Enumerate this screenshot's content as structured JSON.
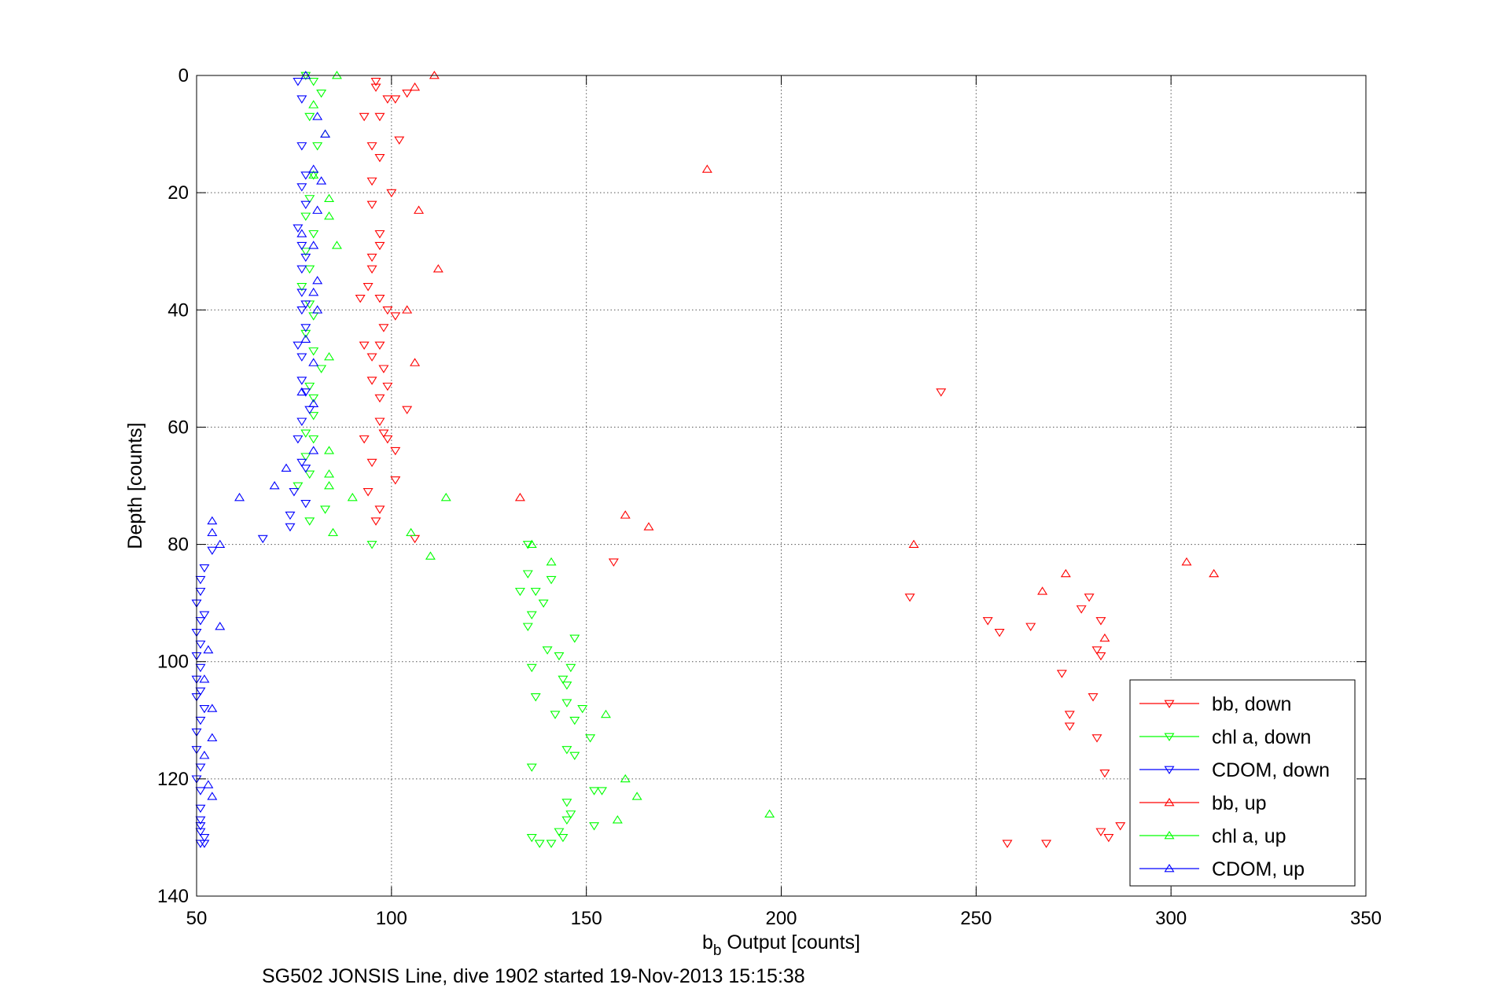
{
  "chart_data": {
    "type": "scatter",
    "title": "",
    "caption": "SG502 JONSIS Line, dive 1902 started 19-Nov-2013 15:15:38",
    "xlabel_main": "b",
    "xlabel_sub": "b",
    "xlabel_rest": " Output [counts]",
    "ylabel": "Depth [counts]",
    "xlim": [
      50,
      350
    ],
    "ylim": [
      0,
      140
    ],
    "y_reversed": true,
    "grid": true,
    "x_ticks": [
      "50",
      "100",
      "150",
      "200",
      "250",
      "300",
      "350"
    ],
    "y_ticks": [
      "0",
      "20",
      "40",
      "60",
      "80",
      "100",
      "120",
      "140"
    ],
    "legend_position": "bottom-right",
    "series": [
      {
        "name": "bb, down",
        "color": "#ff0000",
        "marker": "triangle-down",
        "points": [
          [
            96,
            1
          ],
          [
            96,
            2
          ],
          [
            99,
            4
          ],
          [
            93,
            7
          ],
          [
            97,
            7
          ],
          [
            95,
            12
          ],
          [
            101,
            4
          ],
          [
            104,
            3
          ],
          [
            102,
            11
          ],
          [
            100,
            20
          ],
          [
            97,
            14
          ],
          [
            95,
            18
          ],
          [
            95,
            22
          ],
          [
            97,
            27
          ],
          [
            97,
            29
          ],
          [
            95,
            31
          ],
          [
            95,
            33
          ],
          [
            94,
            36
          ],
          [
            92,
            38
          ],
          [
            97,
            38
          ],
          [
            99,
            40
          ],
          [
            101,
            41
          ],
          [
            98,
            43
          ],
          [
            93,
            46
          ],
          [
            97,
            46
          ],
          [
            95,
            48
          ],
          [
            98,
            50
          ],
          [
            95,
            52
          ],
          [
            99,
            53
          ],
          [
            97,
            55
          ],
          [
            104,
            57
          ],
          [
            97,
            59
          ],
          [
            98,
            61
          ],
          [
            99,
            62
          ],
          [
            93,
            62
          ],
          [
            101,
            64
          ],
          [
            95,
            66
          ],
          [
            101,
            69
          ],
          [
            94,
            71
          ],
          [
            97,
            74
          ],
          [
            96,
            76
          ],
          [
            106,
            79
          ],
          [
            157,
            83
          ],
          [
            233,
            89
          ],
          [
            241,
            54
          ],
          [
            264,
            94
          ],
          [
            256,
            95
          ],
          [
            253,
            93
          ],
          [
            277,
            91
          ],
          [
            279,
            89
          ],
          [
            282,
            93
          ],
          [
            281,
            98
          ],
          [
            282,
            99
          ],
          [
            280,
            106
          ],
          [
            272,
            102
          ],
          [
            274,
            109
          ],
          [
            274,
            111
          ],
          [
            281,
            113
          ],
          [
            283,
            119
          ],
          [
            287,
            128
          ],
          [
            284,
            130
          ],
          [
            258,
            131
          ],
          [
            268,
            131
          ],
          [
            282,
            129
          ]
        ]
      },
      {
        "name": "chl a, down",
        "color": "#00ff00",
        "marker": "triangle-down",
        "points": [
          [
            78,
            0
          ],
          [
            80,
            1
          ],
          [
            82,
            3
          ],
          [
            79,
            7
          ],
          [
            81,
            12
          ],
          [
            80,
            17
          ],
          [
            79,
            21
          ],
          [
            78,
            24
          ],
          [
            80,
            27
          ],
          [
            78,
            30
          ],
          [
            79,
            33
          ],
          [
            77,
            36
          ],
          [
            79,
            39
          ],
          [
            80,
            41
          ],
          [
            78,
            44
          ],
          [
            80,
            47
          ],
          [
            82,
            50
          ],
          [
            79,
            53
          ],
          [
            80,
            55
          ],
          [
            80,
            58
          ],
          [
            78,
            61
          ],
          [
            80,
            62
          ],
          [
            78,
            65
          ],
          [
            79,
            68
          ],
          [
            76,
            70
          ],
          [
            83,
            74
          ],
          [
            79,
            76
          ],
          [
            95,
            80
          ],
          [
            135,
            80
          ],
          [
            135,
            85
          ],
          [
            141,
            86
          ],
          [
            137,
            88
          ],
          [
            133,
            88
          ],
          [
            139,
            90
          ],
          [
            136,
            92
          ],
          [
            135,
            94
          ],
          [
            147,
            96
          ],
          [
            140,
            98
          ],
          [
            143,
            99
          ],
          [
            146,
            101
          ],
          [
            144,
            103
          ],
          [
            145,
            104
          ],
          [
            136,
            101
          ],
          [
            137,
            106
          ],
          [
            145,
            107
          ],
          [
            149,
            108
          ],
          [
            147,
            110
          ],
          [
            142,
            109
          ],
          [
            151,
            113
          ],
          [
            145,
            115
          ],
          [
            147,
            116
          ],
          [
            136,
            118
          ],
          [
            152,
            122
          ],
          [
            154,
            122
          ],
          [
            145,
            124
          ],
          [
            146,
            126
          ],
          [
            145,
            127
          ],
          [
            152,
            128
          ],
          [
            143,
            129
          ],
          [
            144,
            130
          ],
          [
            136,
            130
          ],
          [
            138,
            131
          ],
          [
            141,
            131
          ]
        ]
      },
      {
        "name": "CDOM, down",
        "color": "#0000ff",
        "marker": "triangle-down",
        "points": [
          [
            76,
            1
          ],
          [
            77,
            4
          ],
          [
            77,
            12
          ],
          [
            78,
            17
          ],
          [
            77,
            19
          ],
          [
            78,
            22
          ],
          [
            76,
            26
          ],
          [
            77,
            29
          ],
          [
            78,
            31
          ],
          [
            77,
            33
          ],
          [
            77,
            37
          ],
          [
            78,
            39
          ],
          [
            77,
            40
          ],
          [
            78,
            43
          ],
          [
            76,
            46
          ],
          [
            77,
            48
          ],
          [
            77,
            52
          ],
          [
            78,
            54
          ],
          [
            79,
            57
          ],
          [
            77,
            59
          ],
          [
            76,
            62
          ],
          [
            77,
            66
          ],
          [
            78,
            67
          ],
          [
            75,
            71
          ],
          [
            78,
            73
          ],
          [
            74,
            75
          ],
          [
            74,
            77
          ],
          [
            67,
            79
          ],
          [
            54,
            81
          ],
          [
            52,
            84
          ],
          [
            51,
            86
          ],
          [
            51,
            88
          ],
          [
            50,
            90
          ],
          [
            52,
            92
          ],
          [
            51,
            93
          ],
          [
            50,
            95
          ],
          [
            51,
            97
          ],
          [
            50,
            99
          ],
          [
            51,
            101
          ],
          [
            50,
            103
          ],
          [
            51,
            105
          ],
          [
            50,
            106
          ],
          [
            52,
            108
          ],
          [
            51,
            110
          ],
          [
            50,
            112
          ],
          [
            50,
            115
          ],
          [
            51,
            118
          ],
          [
            50,
            120
          ],
          [
            51,
            122
          ],
          [
            51,
            125
          ],
          [
            51,
            127
          ],
          [
            51,
            128
          ],
          [
            51,
            129
          ],
          [
            52,
            130
          ],
          [
            52,
            131
          ],
          [
            51,
            131
          ]
        ]
      },
      {
        "name": "bb, up",
        "color": "#ff0000",
        "marker": "triangle-up",
        "points": [
          [
            111,
            0
          ],
          [
            106,
            2
          ],
          [
            181,
            16
          ],
          [
            107,
            23
          ],
          [
            112,
            33
          ],
          [
            104,
            40
          ],
          [
            106,
            49
          ],
          [
            133,
            72
          ],
          [
            160,
            75
          ],
          [
            166,
            77
          ],
          [
            234,
            80
          ],
          [
            304,
            83
          ],
          [
            311,
            85
          ],
          [
            273,
            85
          ],
          [
            267,
            88
          ],
          [
            283,
            96
          ]
        ]
      },
      {
        "name": "chl a, up",
        "color": "#00ff00",
        "marker": "triangle-up",
        "points": [
          [
            86,
            0
          ],
          [
            80,
            5
          ],
          [
            83,
            10
          ],
          [
            80,
            17
          ],
          [
            84,
            21
          ],
          [
            84,
            24
          ],
          [
            86,
            29
          ],
          [
            84,
            48
          ],
          [
            84,
            64
          ],
          [
            84,
            68
          ],
          [
            84,
            70
          ],
          [
            90,
            72
          ],
          [
            114,
            72
          ],
          [
            85,
            78
          ],
          [
            105,
            78
          ],
          [
            110,
            82
          ],
          [
            141,
            83
          ],
          [
            136,
            80
          ],
          [
            155,
            109
          ],
          [
            160,
            120
          ],
          [
            163,
            123
          ],
          [
            197,
            126
          ],
          [
            158,
            127
          ]
        ]
      },
      {
        "name": "CDOM, up",
        "color": "#0000ff",
        "marker": "triangle-up",
        "points": [
          [
            78,
            0
          ],
          [
            81,
            7
          ],
          [
            83,
            10
          ],
          [
            80,
            16
          ],
          [
            82,
            18
          ],
          [
            81,
            23
          ],
          [
            77,
            27
          ],
          [
            80,
            29
          ],
          [
            81,
            35
          ],
          [
            80,
            37
          ],
          [
            81,
            40
          ],
          [
            78,
            45
          ],
          [
            80,
            49
          ],
          [
            77,
            54
          ],
          [
            80,
            56
          ],
          [
            80,
            64
          ],
          [
            73,
            67
          ],
          [
            70,
            70
          ],
          [
            61,
            72
          ],
          [
            54,
            76
          ],
          [
            54,
            78
          ],
          [
            56,
            80
          ],
          [
            56,
            94
          ],
          [
            53,
            98
          ],
          [
            52,
            103
          ],
          [
            54,
            108
          ],
          [
            54,
            113
          ],
          [
            52,
            116
          ],
          [
            53,
            121
          ],
          [
            54,
            123
          ]
        ]
      }
    ]
  }
}
